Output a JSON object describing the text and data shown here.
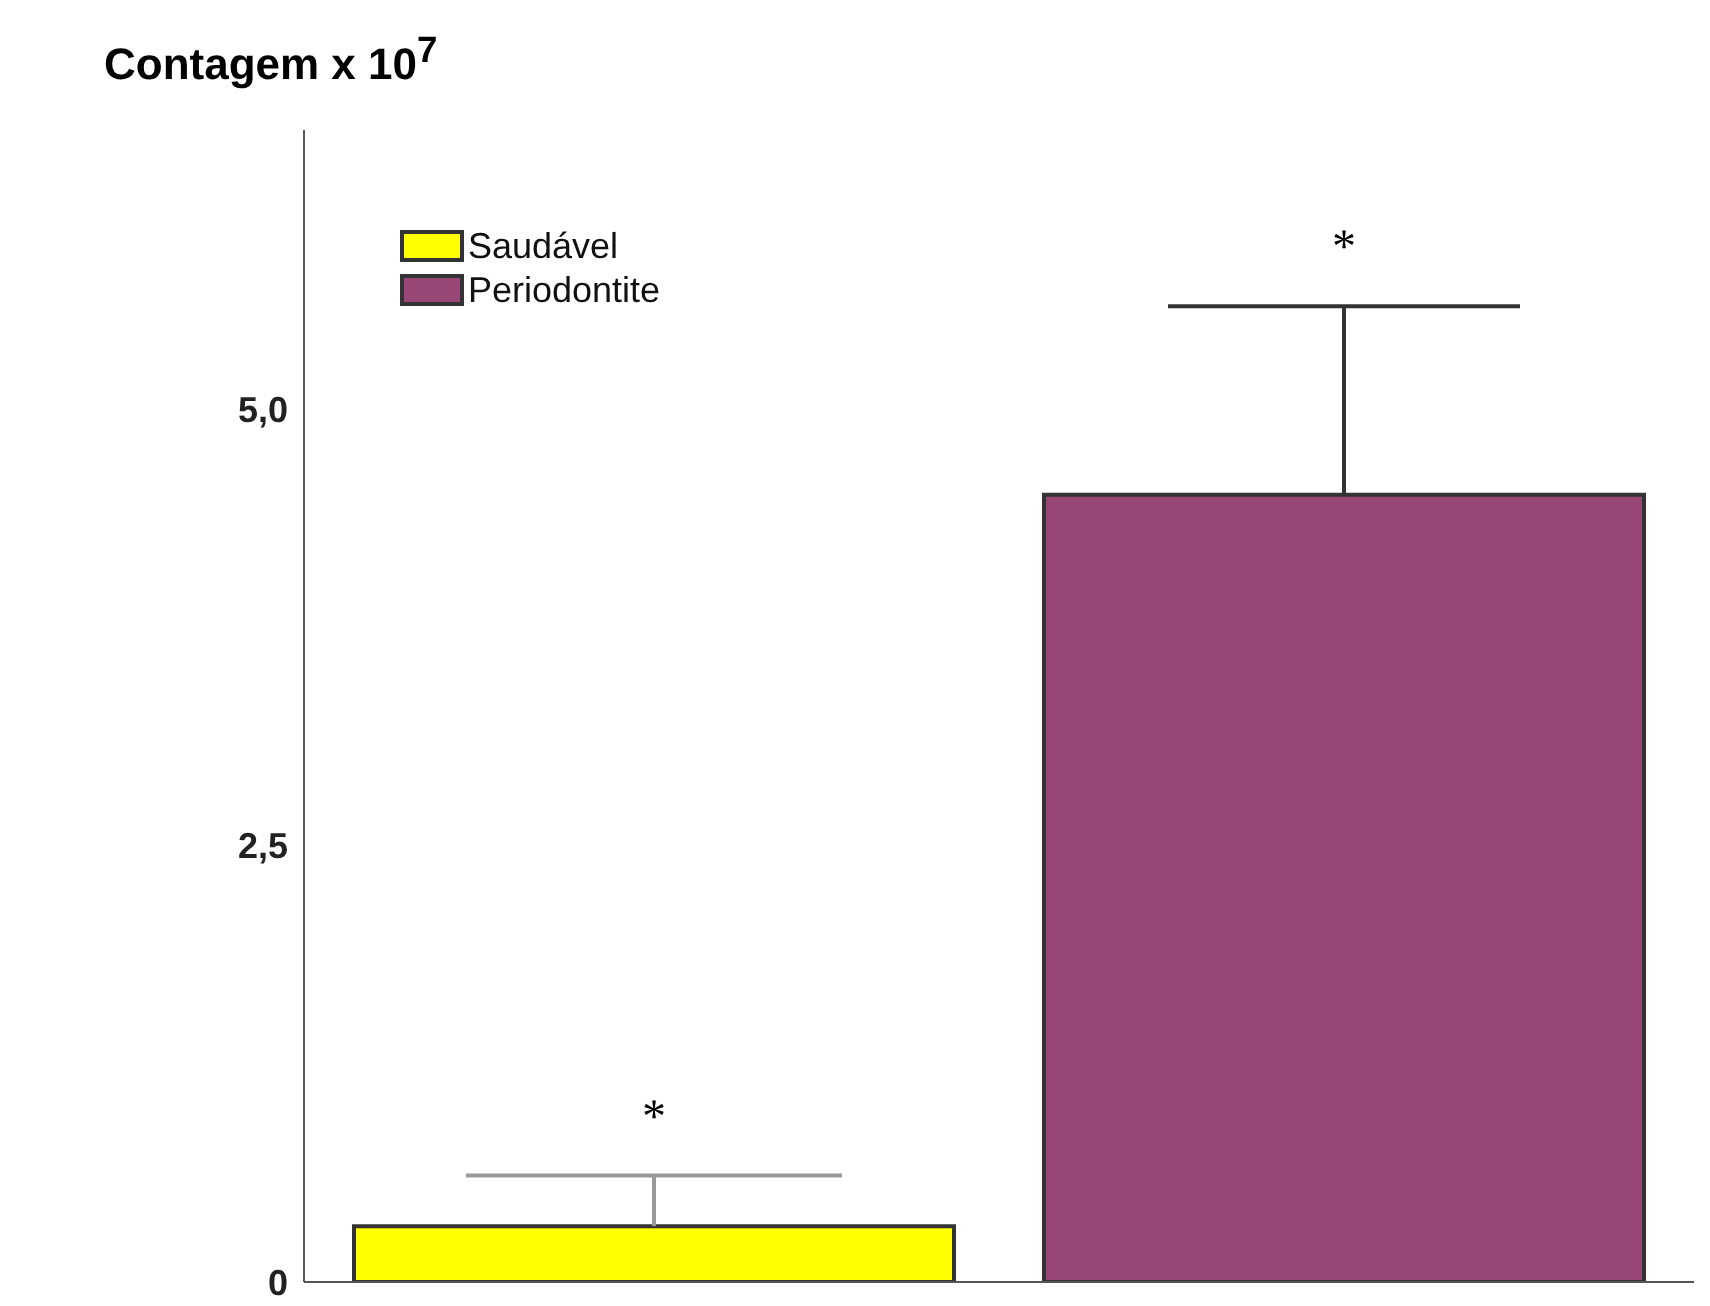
{
  "chart_data": {
    "type": "bar",
    "title": "Contagem x 10$^{7}$",
    "categories": [
      null
    ],
    "series": [
      {
        "name": "Saudável",
        "color": "#ffff00",
        "values": [
          0.32
        ],
        "errors": [
          [
            0.32,
            0.61
          ]
        ]
      },
      {
        "name": "Periodontite",
        "color": "#984776",
        "values": [
          4.51
        ],
        "errors": [
          [
            4.51,
            5.59
          ]
        ]
      }
    ],
    "ylim": [
      0,
      6.6
    ],
    "yticks": [
      0,
      {
        "value": 2.5,
        "label": "2,5"
      },
      {
        "value": 5,
        "label": "5,0"
      }
    ],
    "annotations": [
      "*",
      "*"
    ],
    "legend": "top left",
    "grid": false
  }
}
